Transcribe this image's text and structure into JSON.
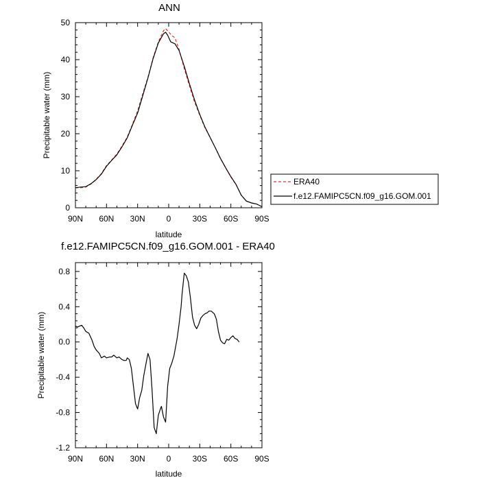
{
  "chart_data": [
    {
      "type": "line",
      "title": "ANN",
      "xlabel": "latitude",
      "ylabel": "Precipitable water (mm)",
      "xlim": [
        90,
        -90
      ],
      "ylim": [
        0,
        50
      ],
      "xticks": [
        90,
        60,
        30,
        0,
        -30,
        -60,
        -90
      ],
      "xticklabels": [
        "90N",
        "60N",
        "30N",
        "0",
        "30S",
        "60S",
        "90S"
      ],
      "yticks": [
        0,
        10,
        20,
        30,
        40,
        50
      ],
      "legend_position": "right",
      "series": [
        {
          "name": "ERA40",
          "color": "#e03030",
          "dash": "dashed",
          "points": [
            [
              90,
              5.4
            ],
            [
              85,
              5.4
            ],
            [
              80,
              5.6
            ],
            [
              75,
              6.4
            ],
            [
              70,
              7.7
            ],
            [
              65,
              9.2
            ],
            [
              60,
              11.4
            ],
            [
              55,
              12.9
            ],
            [
              50,
              14.5
            ],
            [
              45,
              16.7
            ],
            [
              40,
              19.1
            ],
            [
              35,
              22.5
            ],
            [
              30,
              26.2
            ],
            [
              25,
              30.8
            ],
            [
              20,
              35.3
            ],
            [
              15,
              40.5
            ],
            [
              10,
              44.8
            ],
            [
              5,
              47.8
            ],
            [
              3,
              48.4
            ],
            [
              0,
              47.5
            ],
            [
              -3,
              46.5
            ],
            [
              -6,
              45.9
            ],
            [
              -10,
              42.8
            ],
            [
              -15,
              37.6
            ],
            [
              -20,
              33.0
            ],
            [
              -25,
              28.5
            ],
            [
              -30,
              25.0
            ],
            [
              -35,
              21.6
            ],
            [
              -40,
              19.0
            ],
            [
              -45,
              16.2
            ],
            [
              -50,
              13.3
            ],
            [
              -55,
              10.8
            ],
            [
              -60,
              8.3
            ],
            [
              -65,
              6.3
            ],
            [
              -70,
              3.4
            ],
            [
              -75,
              1.8
            ],
            [
              -80,
              1.3
            ],
            [
              -85,
              1.0
            ],
            [
              -90,
              0.3
            ]
          ]
        },
        {
          "name": "f.e12.FAMIPC5CN.f09_g16.GOM.001",
          "color": "#000000",
          "dash": "solid",
          "points": [
            [
              90,
              5.4
            ],
            [
              85,
              5.6
            ],
            [
              80,
              5.7
            ],
            [
              75,
              6.5
            ],
            [
              70,
              7.6
            ],
            [
              65,
              9.1
            ],
            [
              60,
              11.2
            ],
            [
              55,
              12.8
            ],
            [
              50,
              14.3
            ],
            [
              45,
              16.5
            ],
            [
              40,
              18.9
            ],
            [
              35,
              22.3
            ],
            [
              30,
              25.6
            ],
            [
              25,
              30.3
            ],
            [
              20,
              35.1
            ],
            [
              15,
              40.3
            ],
            [
              10,
              44.5
            ],
            [
              5,
              47.0
            ],
            [
              3,
              47.4
            ],
            [
              1,
              46.6
            ],
            [
              -2,
              44.8
            ],
            [
              -6,
              44.3
            ],
            [
              -10,
              42.5
            ],
            [
              -15,
              38.2
            ],
            [
              -20,
              33.5
            ],
            [
              -25,
              29.1
            ],
            [
              -30,
              25.2
            ],
            [
              -35,
              21.8
            ],
            [
              -40,
              19.0
            ],
            [
              -45,
              16.2
            ],
            [
              -50,
              13.3
            ],
            [
              -55,
              10.8
            ],
            [
              -60,
              8.4
            ],
            [
              -65,
              6.3
            ],
            [
              -70,
              3.4
            ],
            [
              -75,
              1.8
            ],
            [
              -80,
              1.3
            ],
            [
              -85,
              1.0
            ],
            [
              -90,
              0.3
            ]
          ]
        }
      ]
    },
    {
      "type": "line",
      "title": "f.e12.FAMIPC5CN.f09_g16.GOM.001 - ERA40",
      "xlabel": "latitude",
      "ylabel": "Precipitable water (mm)",
      "xlim": [
        90,
        -90
      ],
      "ylim": [
        -1.2,
        0.9
      ],
      "xticks": [
        90,
        60,
        30,
        0,
        -30,
        -60,
        -90
      ],
      "xticklabels": [
        "90N",
        "60N",
        "30N",
        "0",
        "30S",
        "60S",
        "90S"
      ],
      "yticks": [
        -1.2,
        -0.8,
        -0.4,
        0.0,
        0.4,
        0.8
      ],
      "yticklabels": [
        "-1.2",
        "-0.8",
        "-0.4",
        "0.0",
        "0.4",
        "0.8"
      ],
      "series": [
        {
          "color": "#000000",
          "dash": "solid",
          "points": [
            [
              90,
              0.18
            ],
            [
              88,
              0.17
            ],
            [
              86,
              0.18
            ],
            [
              84,
              0.19
            ],
            [
              82,
              0.16
            ],
            [
              80,
              0.12
            ],
            [
              77,
              0.1
            ],
            [
              74,
              0.02
            ],
            [
              72,
              -0.05
            ],
            [
              70,
              -0.09
            ],
            [
              67,
              -0.13
            ],
            [
              65,
              -0.18
            ],
            [
              62,
              -0.16
            ],
            [
              60,
              -0.18
            ],
            [
              57,
              -0.17
            ],
            [
              55,
              -0.17
            ],
            [
              53,
              -0.15
            ],
            [
              50,
              -0.18
            ],
            [
              48,
              -0.17
            ],
            [
              45,
              -0.2
            ],
            [
              43,
              -0.21
            ],
            [
              41,
              -0.21
            ],
            [
              40,
              -0.18
            ],
            [
              38,
              -0.2
            ],
            [
              36,
              -0.3
            ],
            [
              34,
              -0.5
            ],
            [
              32,
              -0.7
            ],
            [
              30,
              -0.76
            ],
            [
              28,
              -0.63
            ],
            [
              26,
              -0.55
            ],
            [
              24,
              -0.38
            ],
            [
              22,
              -0.25
            ],
            [
              20,
              -0.13
            ],
            [
              18,
              -0.2
            ],
            [
              16,
              -0.55
            ],
            [
              14,
              -0.97
            ],
            [
              12,
              -1.04
            ],
            [
              10,
              -0.83
            ],
            [
              8,
              -0.76
            ],
            [
              7,
              -0.73
            ],
            [
              5,
              -0.85
            ],
            [
              3,
              -0.91
            ],
            [
              1,
              -0.5
            ],
            [
              -1,
              -0.3
            ],
            [
              -3,
              -0.24
            ],
            [
              -5,
              -0.16
            ],
            [
              -8,
              0.03
            ],
            [
              -10,
              0.2
            ],
            [
              -12,
              0.4
            ],
            [
              -13,
              0.55
            ],
            [
              -15,
              0.78
            ],
            [
              -17,
              0.75
            ],
            [
              -19,
              0.68
            ],
            [
              -21,
              0.5
            ],
            [
              -23,
              0.28
            ],
            [
              -25,
              0.19
            ],
            [
              -27,
              0.15
            ],
            [
              -29,
              0.2
            ],
            [
              -31,
              0.27
            ],
            [
              -33,
              0.3
            ],
            [
              -35,
              0.32
            ],
            [
              -37,
              0.33
            ],
            [
              -39,
              0.35
            ],
            [
              -41,
              0.35
            ],
            [
              -44,
              0.32
            ],
            [
              -46,
              0.26
            ],
            [
              -48,
              0.12
            ],
            [
              -50,
              0.02
            ],
            [
              -52,
              -0.01
            ],
            [
              -54,
              -0.02
            ],
            [
              -56,
              0.03
            ],
            [
              -58,
              0.02
            ],
            [
              -60,
              0.05
            ],
            [
              -62,
              0.07
            ],
            [
              -64,
              0.04
            ],
            [
              -66,
              0.03
            ],
            [
              -68,
              0.0
            ]
          ]
        }
      ]
    }
  ]
}
